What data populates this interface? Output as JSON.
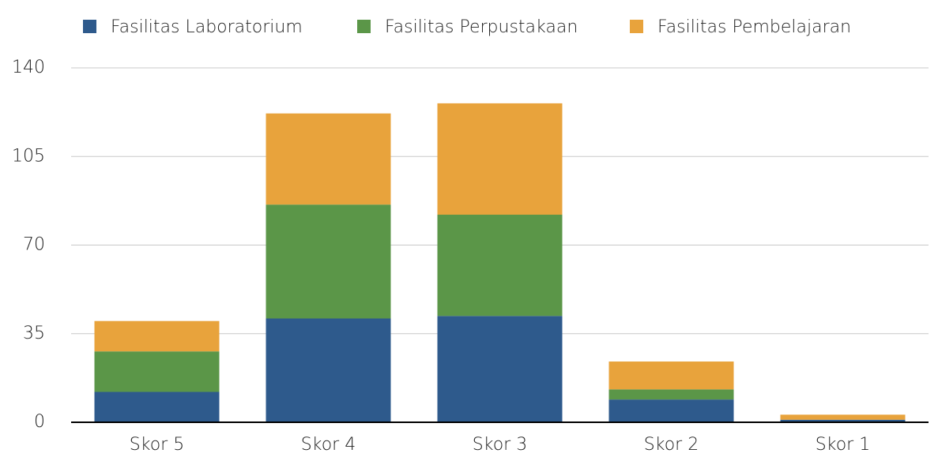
{
  "chart_data": {
    "type": "stacked_bar",
    "categories": [
      "Skor 5",
      "Skor 4",
      "Skor 3",
      "Skor 2",
      "Skor 1"
    ],
    "series": [
      {
        "name": "Fasilitas Laboratorium",
        "color": "#2e5a8c",
        "values": [
          12,
          41,
          42,
          9,
          1
        ]
      },
      {
        "name": "Fasilitas Perpustakaan",
        "color": "#5b9648",
        "values": [
          16,
          45,
          40,
          4,
          0
        ]
      },
      {
        "name": "Fasilitas Pembelajaran",
        "color": "#e8a33c",
        "values": [
          12,
          36,
          44,
          11,
          2
        ]
      }
    ],
    "ylim": [
      0,
      140
    ],
    "yticks": [
      0,
      35,
      70,
      105,
      140
    ],
    "grid": true,
    "legend": "top"
  }
}
